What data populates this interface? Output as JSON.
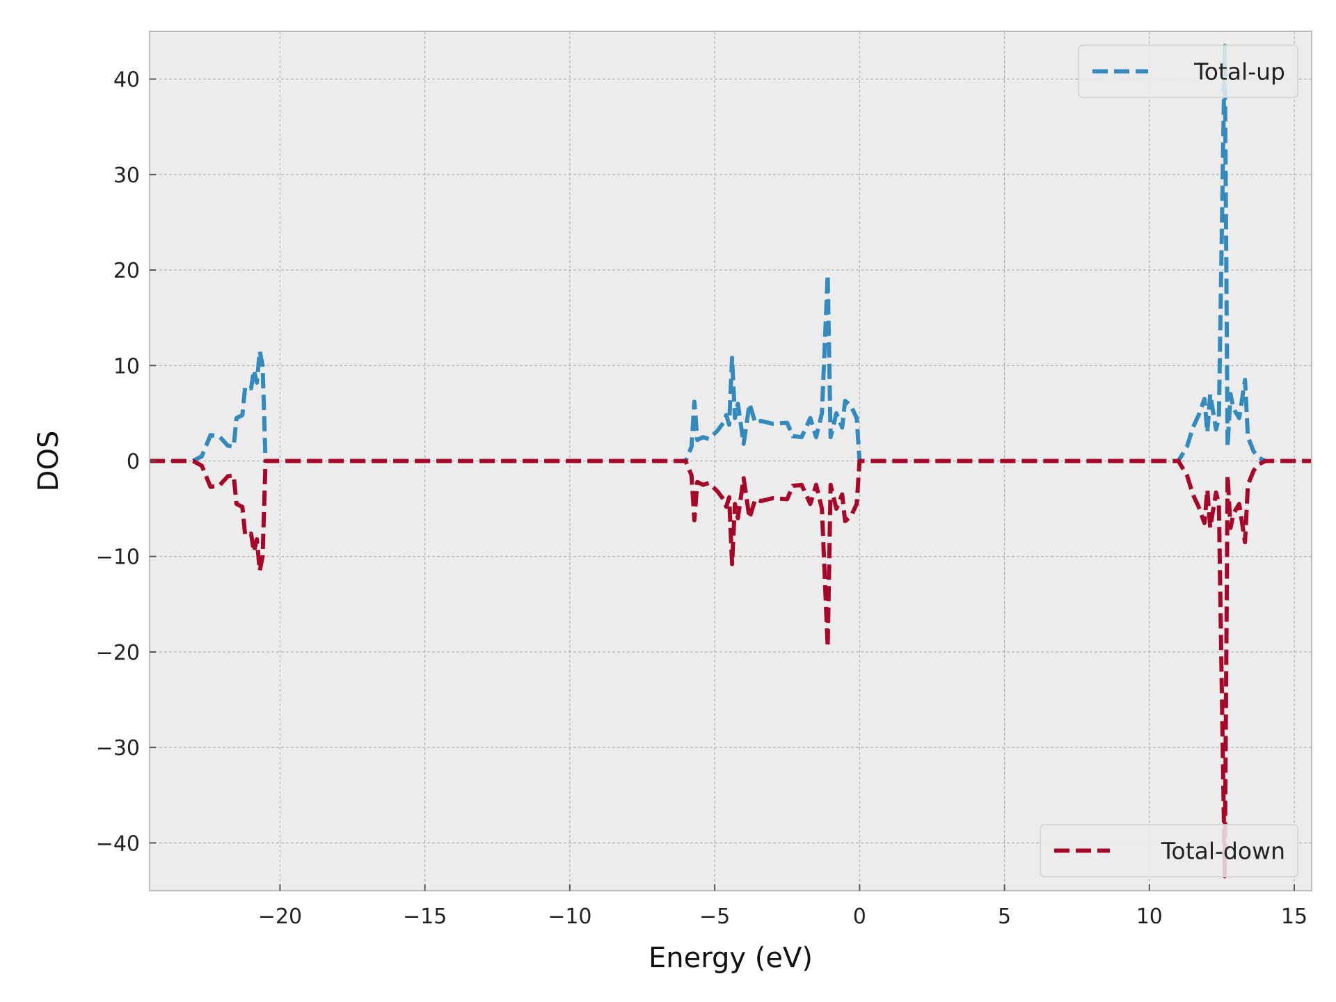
{
  "chart_data": {
    "type": "line",
    "xlabel": "Energy (eV)",
    "ylabel": "DOS",
    "xlim": [
      -24.5,
      15.6
    ],
    "ylim": [
      -45,
      45
    ],
    "xticks": [
      -20,
      -15,
      -10,
      -5,
      0,
      5,
      10,
      15
    ],
    "xtick_labels": [
      "−20",
      "−15",
      "−10",
      "−5",
      "0",
      "5",
      "10",
      "15"
    ],
    "yticks": [
      -40,
      -30,
      -20,
      -10,
      0,
      10,
      20,
      30,
      40
    ],
    "ytick_labels": [
      "−40",
      "−30",
      "−20",
      "−10",
      "0",
      "10",
      "20",
      "30",
      "40"
    ],
    "grid": true,
    "line_style": "dashed",
    "colors": {
      "up": "#348abd",
      "down": "#a60628",
      "background": "#ececec",
      "grid": "#b0b0b0"
    },
    "legends": [
      {
        "label": "Total-up",
        "series": "up",
        "placement": "top-right"
      },
      {
        "label": "Total-down",
        "series": "down",
        "placement": "bottom-right"
      }
    ],
    "series": [
      {
        "name": "Total-up",
        "points": [
          [
            -24.5,
            0
          ],
          [
            -23,
            0
          ],
          [
            -22.7,
            0.5
          ],
          [
            -22.4,
            2.7
          ],
          [
            -22.1,
            2.6
          ],
          [
            -21.8,
            1.6
          ],
          [
            -21.6,
            1.5
          ],
          [
            -21.5,
            4.5
          ],
          [
            -21.3,
            4.8
          ],
          [
            -21.2,
            7.8
          ],
          [
            -21.0,
            7.6
          ],
          [
            -20.9,
            9.5
          ],
          [
            -20.8,
            8.2
          ],
          [
            -20.7,
            11.5
          ],
          [
            -20.6,
            10
          ],
          [
            -20.5,
            0
          ],
          [
            -6,
            0
          ],
          [
            -5.8,
            1.5
          ],
          [
            -5.7,
            6.2
          ],
          [
            -5.6,
            2.2
          ],
          [
            -5.4,
            2.5
          ],
          [
            -5.2,
            2.3
          ],
          [
            -4.9,
            3.2
          ],
          [
            -4.7,
            4.0
          ],
          [
            -4.6,
            4.8
          ],
          [
            -4.5,
            3.8
          ],
          [
            -4.4,
            10.8
          ],
          [
            -4.3,
            4.5
          ],
          [
            -4.2,
            6.0
          ],
          [
            -4.0,
            1.8
          ],
          [
            -3.8,
            6.0
          ],
          [
            -3.6,
            4.0
          ],
          [
            -3.4,
            4.2
          ],
          [
            -3.0,
            3.9
          ],
          [
            -2.5,
            4.0
          ],
          [
            -2.3,
            2.6
          ],
          [
            -2.0,
            2.5
          ],
          [
            -1.7,
            4.5
          ],
          [
            -1.5,
            2.5
          ],
          [
            -1.3,
            5.0
          ],
          [
            -1.1,
            19.5
          ],
          [
            -1.0,
            2.5
          ],
          [
            -0.8,
            5.0
          ],
          [
            -0.6,
            3.5
          ],
          [
            -0.5,
            6.3
          ],
          [
            -0.3,
            5.8
          ],
          [
            -0.1,
            4.5
          ],
          [
            0,
            0
          ],
          [
            11,
            0
          ],
          [
            11.3,
            1.5
          ],
          [
            11.5,
            3.5
          ],
          [
            11.7,
            4.8
          ],
          [
            11.9,
            6.5
          ],
          [
            12.0,
            3.0
          ],
          [
            12.1,
            7.0
          ],
          [
            12.3,
            3.3
          ],
          [
            12.4,
            4.5
          ],
          [
            12.6,
            43.5
          ],
          [
            12.7,
            1.5
          ],
          [
            12.8,
            7.0
          ],
          [
            12.9,
            5.5
          ],
          [
            13.1,
            4.5
          ],
          [
            13.3,
            8.5
          ],
          [
            13.4,
            2.5
          ],
          [
            13.6,
            1.0
          ],
          [
            13.8,
            0.3
          ],
          [
            14,
            0
          ],
          [
            15.6,
            0
          ]
        ]
      },
      {
        "name": "Total-down",
        "points": [
          [
            -24.5,
            0
          ],
          [
            -23,
            0
          ],
          [
            -22.7,
            -0.5
          ],
          [
            -22.4,
            -2.7
          ],
          [
            -22.1,
            -2.6
          ],
          [
            -21.8,
            -1.6
          ],
          [
            -21.6,
            -1.5
          ],
          [
            -21.5,
            -4.5
          ],
          [
            -21.3,
            -4.8
          ],
          [
            -21.2,
            -7.8
          ],
          [
            -21.0,
            -7.6
          ],
          [
            -20.9,
            -9.5
          ],
          [
            -20.8,
            -8.2
          ],
          [
            -20.7,
            -11.5
          ],
          [
            -20.6,
            -10
          ],
          [
            -20.5,
            0
          ],
          [
            -6,
            0
          ],
          [
            -5.8,
            -1.5
          ],
          [
            -5.7,
            -6.2
          ],
          [
            -5.6,
            -2.2
          ],
          [
            -5.4,
            -2.5
          ],
          [
            -5.2,
            -2.3
          ],
          [
            -4.9,
            -3.2
          ],
          [
            -4.7,
            -4.0
          ],
          [
            -4.6,
            -4.8
          ],
          [
            -4.5,
            -3.8
          ],
          [
            -4.4,
            -10.8
          ],
          [
            -4.3,
            -4.5
          ],
          [
            -4.2,
            -6.0
          ],
          [
            -4.0,
            -1.8
          ],
          [
            -3.8,
            -6.0
          ],
          [
            -3.6,
            -4.0
          ],
          [
            -3.4,
            -4.2
          ],
          [
            -3.0,
            -3.9
          ],
          [
            -2.5,
            -4.0
          ],
          [
            -2.3,
            -2.6
          ],
          [
            -2.0,
            -2.5
          ],
          [
            -1.7,
            -4.5
          ],
          [
            -1.5,
            -2.5
          ],
          [
            -1.3,
            -5.0
          ],
          [
            -1.1,
            -19.5
          ],
          [
            -1.0,
            -2.5
          ],
          [
            -0.8,
            -5.0
          ],
          [
            -0.6,
            -3.5
          ],
          [
            -0.5,
            -6.3
          ],
          [
            -0.3,
            -5.8
          ],
          [
            -0.1,
            -4.5
          ],
          [
            0,
            0
          ],
          [
            11,
            0
          ],
          [
            11.3,
            -1.5
          ],
          [
            11.5,
            -3.5
          ],
          [
            11.7,
            -4.8
          ],
          [
            11.9,
            -6.5
          ],
          [
            12.0,
            -3.0
          ],
          [
            12.1,
            -7.0
          ],
          [
            12.3,
            -3.3
          ],
          [
            12.4,
            -4.5
          ],
          [
            12.6,
            -43.5
          ],
          [
            12.7,
            -1.5
          ],
          [
            12.8,
            -7.0
          ],
          [
            12.9,
            -5.5
          ],
          [
            13.1,
            -4.5
          ],
          [
            13.3,
            -8.5
          ],
          [
            13.4,
            -2.5
          ],
          [
            13.6,
            -1.0
          ],
          [
            13.8,
            -0.3
          ],
          [
            14,
            0
          ],
          [
            15.6,
            0
          ]
        ]
      }
    ]
  }
}
